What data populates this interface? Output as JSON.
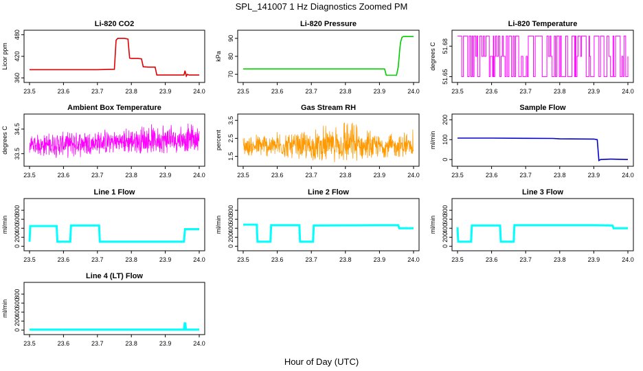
{
  "figure": {
    "title": "SPL_141007  1 Hz Diagnostics Zoomed PM",
    "xlabel": "Hour of Day (UTC)"
  },
  "chart_data": [
    {
      "type": "line",
      "title": "Li-820 CO2",
      "ylabel": "Licor ppm",
      "color": "#dd0000",
      "xlim": [
        23.5,
        24.0
      ],
      "ylim": [
        355,
        485
      ],
      "yticks": [
        360,
        420,
        480
      ],
      "xticks": [
        23.5,
        23.6,
        23.7,
        23.8,
        23.9,
        24.0
      ],
      "x": [
        23.5,
        23.55,
        23.6,
        23.65,
        23.7,
        23.75,
        23.755,
        23.76,
        23.78,
        23.79,
        23.795,
        23.8,
        23.82,
        23.83,
        23.835,
        23.85,
        23.87,
        23.875,
        23.9,
        23.93,
        23.955,
        23.958,
        23.962,
        23.965,
        23.97,
        23.99,
        24.0
      ],
      "y": [
        383,
        383,
        383,
        383,
        383,
        384,
        465,
        470,
        470,
        468,
        415,
        414,
        414,
        413,
        391,
        390,
        390,
        368,
        368,
        368,
        368,
        380,
        365,
        370,
        368,
        368,
        368
      ]
    },
    {
      "type": "line",
      "title": "Li-820 Pressure",
      "ylabel": "kPa",
      "color": "#00cc00",
      "xlim": [
        23.5,
        24.0
      ],
      "ylim": [
        67,
        93
      ],
      "yticks": [
        70,
        80,
        90
      ],
      "xticks": [
        23.5,
        23.6,
        23.7,
        23.8,
        23.9,
        24.0
      ],
      "x": [
        23.5,
        23.6,
        23.7,
        23.8,
        23.9,
        23.915,
        23.92,
        23.95,
        23.955,
        23.96,
        23.962,
        23.966,
        23.97,
        24.0
      ],
      "y": [
        73,
        73,
        73,
        73,
        73,
        73,
        69.5,
        69.5,
        74,
        85,
        88,
        90.5,
        91,
        91
      ]
    },
    {
      "type": "line",
      "title": "Li-820 Temperature",
      "ylabel": "degrees C",
      "color": "#ff00ff",
      "xlim": [
        23.5,
        24.0
      ],
      "ylim": [
        51.647,
        51.693
      ],
      "yticks": [
        51.65,
        51.68
      ],
      "ytick_labels": [
        "51.65",
        "51.68"
      ],
      "xticks": [
        23.5,
        23.6,
        23.7,
        23.8,
        23.9,
        24.0
      ],
      "levels": [
        51.65,
        51.67,
        51.69
      ],
      "pattern": "rapid switching between levels over the full range"
    },
    {
      "type": "line",
      "title": "Ambient Box Temperature",
      "ylabel": "degrees C",
      "color": "#ff00ff",
      "xlim": [
        23.5,
        24.0
      ],
      "ylim": [
        33.1,
        35.0
      ],
      "yticks": [
        33.5,
        34.5
      ],
      "xticks": [
        23.5,
        23.6,
        23.7,
        23.8,
        23.9,
        24.0
      ],
      "x": [
        23.5,
        23.6,
        23.7,
        23.8,
        23.9,
        24.0
      ],
      "y_mean": [
        33.85,
        33.9,
        33.95,
        34.0,
        34.05,
        34.1
      ],
      "y_range": [
        [
          33.35,
          34.3
        ],
        [
          33.3,
          34.4
        ],
        [
          33.4,
          34.5
        ],
        [
          33.5,
          34.6
        ],
        [
          33.5,
          34.8
        ],
        [
          33.6,
          34.7
        ]
      ]
    },
    {
      "type": "line",
      "title": "Gas Stream RH",
      "ylabel": "percent",
      "color": "#ff9900",
      "xlim": [
        23.5,
        24.0
      ],
      "ylim": [
        1.1,
        3.7
      ],
      "yticks": [
        1.5,
        2.5,
        3.5
      ],
      "xticks": [
        23.5,
        23.6,
        23.7,
        23.8,
        23.9,
        24.0
      ],
      "x": [
        23.5,
        23.6,
        23.7,
        23.8,
        23.9,
        24.0
      ],
      "y_mean": [
        2.05,
        2.05,
        2.05,
        2.05,
        2.05,
        2.05
      ],
      "y_range": [
        [
          1.5,
          2.7
        ],
        [
          1.5,
          2.9
        ],
        [
          1.2,
          3.0
        ],
        [
          1.4,
          3.6
        ],
        [
          1.4,
          2.8
        ],
        [
          1.6,
          3.0
        ]
      ]
    },
    {
      "type": "line",
      "title": "Sample Flow",
      "ylabel": "ml/min",
      "color": "#0000cc",
      "xlim": [
        23.5,
        24.0
      ],
      "ylim": [
        -20,
        215
      ],
      "yticks": [
        0,
        100,
        200
      ],
      "xticks": [
        23.5,
        23.6,
        23.7,
        23.8,
        23.9,
        24.0
      ],
      "x": [
        23.5,
        23.6,
        23.7,
        23.78,
        23.8,
        23.9,
        23.91,
        23.915,
        23.92,
        23.95,
        24.0
      ],
      "y": [
        108,
        108,
        107,
        106,
        104,
        103,
        100,
        -5,
        0,
        2,
        0
      ]
    },
    {
      "type": "line",
      "title": "Line 1 Flow",
      "ylabel": "ml/min",
      "color": "#00ffff",
      "xlim": [
        23.5,
        24.0
      ],
      "ylim": [
        -40,
        1000
      ],
      "yticks": [
        0,
        200,
        400,
        600,
        800
      ],
      "xticks": [
        23.5,
        23.6,
        23.7,
        23.8,
        23.9,
        24.0
      ],
      "x": [
        23.5,
        23.502,
        23.58,
        23.582,
        23.62,
        23.622,
        23.705,
        23.707,
        23.8,
        23.9,
        23.955,
        23.958,
        24.0
      ],
      "y": [
        100,
        450,
        450,
        100,
        100,
        460,
        460,
        100,
        100,
        100,
        100,
        380,
        380
      ]
    },
    {
      "type": "line",
      "title": "Line 2 Flow",
      "ylabel": "ml/min",
      "color": "#00ffff",
      "xlim": [
        23.5,
        24.0
      ],
      "ylim": [
        -40,
        1000
      ],
      "yticks": [
        0,
        200,
        400,
        600,
        800
      ],
      "xticks": [
        23.5,
        23.6,
        23.7,
        23.8,
        23.9,
        24.0
      ],
      "x": [
        23.5,
        23.54,
        23.542,
        23.58,
        23.582,
        23.665,
        23.667,
        23.705,
        23.707,
        23.8,
        23.9,
        23.955,
        23.958,
        24.0
      ],
      "y": [
        480,
        480,
        100,
        100,
        470,
        470,
        100,
        100,
        460,
        465,
        470,
        470,
        400,
        400
      ]
    },
    {
      "type": "line",
      "title": "Line 3 Flow",
      "ylabel": "ml/min",
      "color": "#00ffff",
      "xlim": [
        23.5,
        24.0
      ],
      "ylim": [
        -40,
        1000
      ],
      "yticks": [
        0,
        200,
        400,
        600,
        800
      ],
      "xticks": [
        23.5,
        23.6,
        23.7,
        23.8,
        23.9,
        24.0
      ],
      "x": [
        23.5,
        23.502,
        23.54,
        23.542,
        23.625,
        23.627,
        23.665,
        23.667,
        23.8,
        23.9,
        23.955,
        23.958,
        24.0
      ],
      "y": [
        420,
        100,
        100,
        460,
        460,
        100,
        100,
        470,
        470,
        470,
        460,
        400,
        400
      ]
    },
    {
      "type": "line",
      "title": "Line 4 (LT) Flow",
      "ylabel": "ml/min",
      "color": "#00ffff",
      "xlim": [
        23.5,
        24.0
      ],
      "ylim": [
        -40,
        1000
      ],
      "yticks": [
        0,
        200,
        400,
        600,
        800
      ],
      "xticks": [
        23.5,
        23.6,
        23.7,
        23.8,
        23.9,
        24.0
      ],
      "x": [
        23.5,
        23.6,
        23.7,
        23.8,
        23.9,
        23.955,
        23.957,
        23.959,
        23.961,
        24.0
      ],
      "y": [
        10,
        10,
        10,
        10,
        10,
        10,
        150,
        150,
        10,
        10
      ]
    }
  ]
}
